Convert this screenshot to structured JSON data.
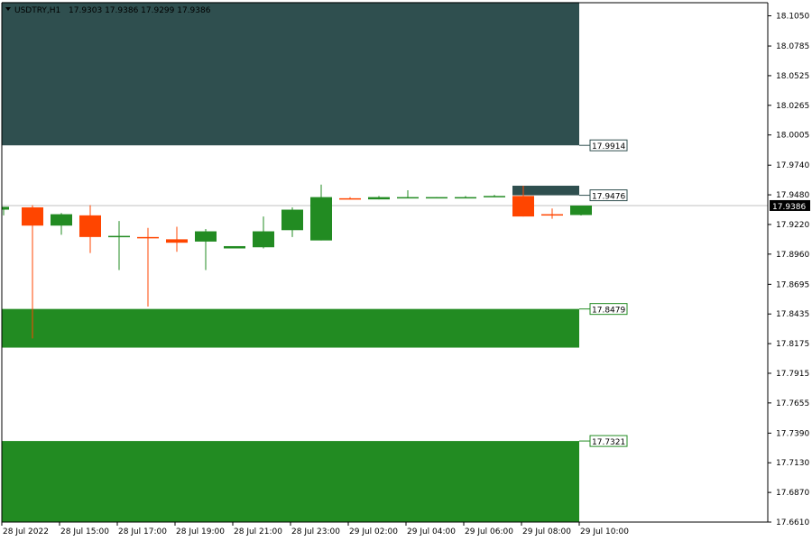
{
  "header": {
    "symbol_label": "USDTRY,H1",
    "ohlc_label": "17.9303 17.9386 17.9299 17.9386"
  },
  "colors": {
    "bull": "#228b22",
    "bear": "#ff4500",
    "supply_zone": "#2f4f4f",
    "demand_zone": "#228b22",
    "bid_line": "#c0c0c0",
    "axis": "#000000",
    "background": "#ffffff"
  },
  "chart_data": {
    "type": "candlestick",
    "title": "",
    "xlabel": "",
    "ylabel": "",
    "ylim": [
      17.661,
      18.1165
    ],
    "y_ticks": [
      "18.1050",
      "18.0785",
      "18.0525",
      "18.0265",
      "18.0005",
      "17.9740",
      "17.9480",
      "17.9220",
      "17.8960",
      "17.8695",
      "17.8435",
      "17.8175",
      "17.7915",
      "17.7655",
      "17.7390",
      "17.7130",
      "17.6870",
      "17.6610"
    ],
    "x_ticks": [
      "28 Jul 2022",
      "28 Jul 15:00",
      "28 Jul 17:00",
      "28 Jul 19:00",
      "28 Jul 21:00",
      "28 Jul 23:00",
      "29 Jul 02:00",
      "29 Jul 04:00",
      "29 Jul 06:00",
      "29 Jul 08:00",
      "29 Jul 10:00"
    ],
    "current_price": "17.9386",
    "candles": [
      {
        "o": 17.935,
        "h": 17.937,
        "l": 17.93,
        "c": 17.9375
      },
      {
        "o": 17.937,
        "h": 17.939,
        "l": 17.822,
        "c": 17.921
      },
      {
        "o": 17.921,
        "h": 17.932,
        "l": 17.913,
        "c": 17.931
      },
      {
        "o": 17.93,
        "h": 17.939,
        "l": 17.897,
        "c": 17.911
      },
      {
        "o": 17.911,
        "h": 17.925,
        "l": 17.882,
        "c": 17.912
      },
      {
        "o": 17.911,
        "h": 17.919,
        "l": 17.85,
        "c": 17.91
      },
      {
        "o": 17.909,
        "h": 17.92,
        "l": 17.898,
        "c": 17.906
      },
      {
        "o": 17.907,
        "h": 17.918,
        "l": 17.882,
        "c": 17.916
      },
      {
        "o": 17.901,
        "h": 17.903,
        "l": 17.901,
        "c": 17.903
      },
      {
        "o": 17.902,
        "h": 17.929,
        "l": 17.901,
        "c": 17.916
      },
      {
        "o": 17.917,
        "h": 17.937,
        "l": 17.911,
        "c": 17.935
      },
      {
        "o": 17.908,
        "h": 17.957,
        "l": 17.908,
        "c": 17.946
      },
      {
        "o": 17.945,
        "h": 17.946,
        "l": 17.944,
        "c": 17.944
      },
      {
        "o": 17.944,
        "h": 17.947,
        "l": 17.944,
        "c": 17.946
      },
      {
        "o": 17.945,
        "h": 17.952,
        "l": 17.945,
        "c": 17.946
      },
      {
        "o": 17.946,
        "h": 17.946,
        "l": 17.945,
        "c": 17.946
      },
      {
        "o": 17.945,
        "h": 17.947,
        "l": 17.945,
        "c": 17.946
      },
      {
        "o": 17.946,
        "h": 17.948,
        "l": 17.946,
        "c": 17.947
      },
      {
        "o": 17.947,
        "h": 17.956,
        "l": 17.929,
        "c": 17.929
      },
      {
        "o": 17.931,
        "h": 17.936,
        "l": 17.927,
        "c": 17.93
      },
      {
        "o": 17.9303,
        "h": 17.9386,
        "l": 17.9299,
        "c": 17.9386
      }
    ],
    "zones": [
      {
        "kind": "supply",
        "top": 18.117,
        "bottom": 17.9914,
        "label": "17.9914"
      },
      {
        "kind": "supply",
        "top": 17.956,
        "bottom": 17.9476,
        "label": "17.9476"
      },
      {
        "kind": "demand",
        "top": 17.8479,
        "bottom": 17.814,
        "label": "17.8479"
      },
      {
        "kind": "demand",
        "top": 17.7321,
        "bottom": 17.661,
        "label": "17.7321"
      }
    ]
  }
}
